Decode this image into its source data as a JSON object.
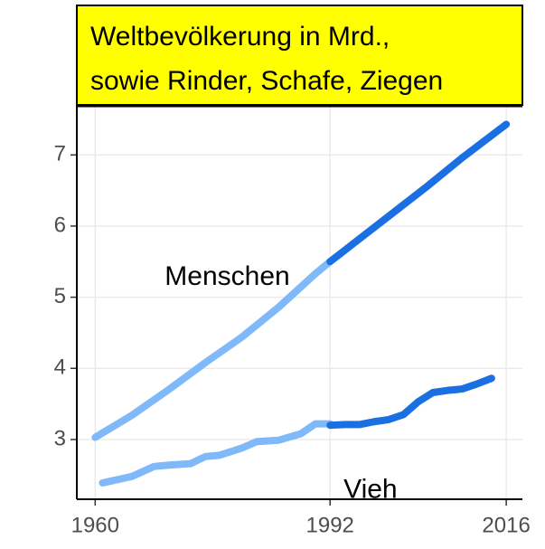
{
  "chart_data": {
    "type": "line",
    "title": [
      "Weltbevölkerung in Mrd.,",
      "sowie Rinder, Schafe, Ziegen"
    ],
    "title_background": "#ffff00",
    "series": [
      {
        "color": "#80b9f9",
        "x": [
          1960,
          1965,
          1970,
          1975,
          1980,
          1985,
          1990,
          1992
        ],
        "values": [
          3.03,
          3.34,
          3.7,
          4.08,
          4.44,
          4.86,
          5.33,
          5.5
        ]
      },
      {
        "color": "#1a6fe3",
        "x": [
          1992,
          1995,
          2000,
          2005,
          2010,
          2016
        ],
        "values": [
          5.5,
          5.74,
          6.14,
          6.54,
          6.96,
          7.43
        ]
      },
      {
        "color": "#80b9f9",
        "x": [
          1961,
          1965,
          1968,
          1970,
          1973,
          1975,
          1977,
          1980,
          1982,
          1985,
          1988,
          1990,
          1992
        ],
        "values": [
          2.39,
          2.48,
          2.62,
          2.64,
          2.66,
          2.76,
          2.78,
          2.88,
          2.97,
          2.99,
          3.08,
          3.22,
          3.22
        ]
      },
      {
        "color": "#1a6fe3",
        "x": [
          1992,
          1994,
          1996,
          1998,
          2000,
          2002,
          2004,
          2006,
          2008,
          2010,
          2012,
          2014
        ],
        "values": [
          3.2,
          3.21,
          3.21,
          3.25,
          3.28,
          3.35,
          3.53,
          3.66,
          3.69,
          3.71,
          3.78,
          3.86
        ]
      }
    ],
    "annotations": [
      {
        "text": "Menschen",
        "x": 1978,
        "y": 5.275
      },
      {
        "text": "Vieh",
        "x": 1997.5,
        "y": 2.28
      }
    ],
    "xlim": [
      1957.5,
      2018.2
    ],
    "ylim": [
      2.16,
      7.69
    ],
    "xticks": [
      1960,
      1992,
      2016
    ],
    "yticks": [
      3,
      4,
      5,
      6,
      7
    ],
    "grid": true
  }
}
